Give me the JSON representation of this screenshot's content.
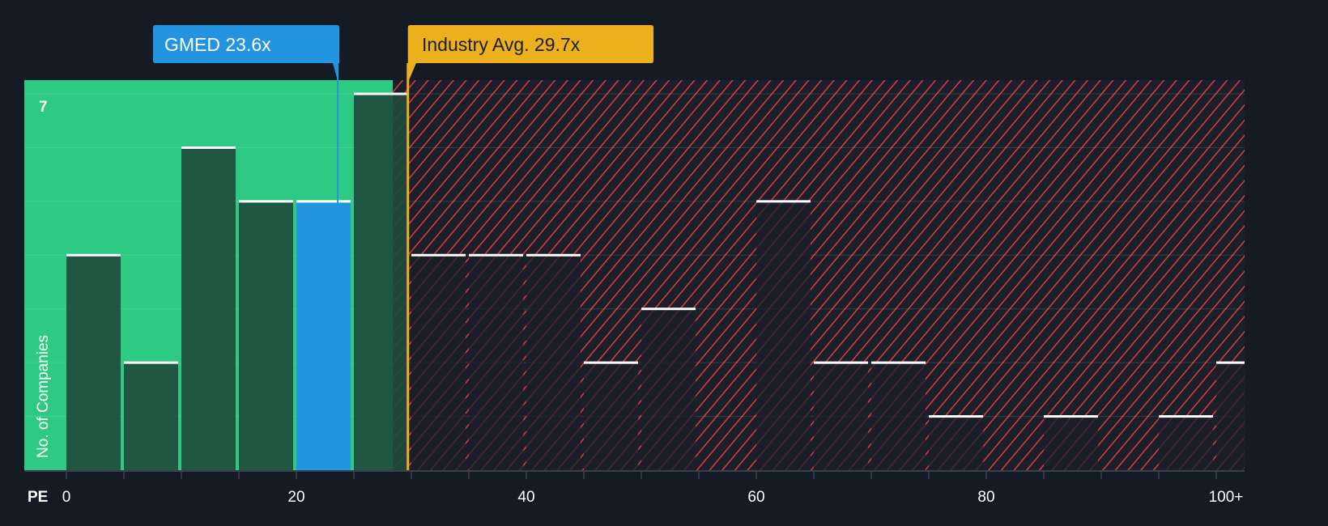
{
  "chart_data": {
    "type": "bar",
    "title": "",
    "xlabel": "PE",
    "ylabel": "No. of Companies",
    "bin_width": 5,
    "bins": [
      "0-5",
      "5-10",
      "10-15",
      "15-20",
      "20-25",
      "25-30",
      "30-35",
      "35-40",
      "40-45",
      "45-50",
      "50-55",
      "55-60",
      "60-65",
      "65-70",
      "70-75",
      "75-80",
      "80-85",
      "85-90",
      "90-95",
      "95-100",
      "100+"
    ],
    "values": [
      4,
      2,
      6,
      5,
      5,
      7,
      4,
      4,
      4,
      2,
      3,
      0,
      5,
      2,
      2,
      1,
      0,
      1,
      0,
      1,
      2
    ],
    "highlight_bin": 4,
    "x_ticks": [
      "0",
      "20",
      "40",
      "60",
      "80",
      "100+"
    ],
    "x_tick_values": [
      0,
      20,
      40,
      60,
      80,
      100
    ],
    "y_max_label": "7",
    "ylim": [
      0,
      7
    ],
    "xlim": [
      0,
      102
    ],
    "company": {
      "label": "GMED 23.6x",
      "value": 23.6
    },
    "industry": {
      "label": "Industry Avg. 29.7x",
      "value": 29.7
    },
    "colors": {
      "background": "#151b24",
      "undervalued": "#2ec982",
      "overvalued_hatch": "#e03a3e",
      "company": "#2394e0",
      "industry": "#ebb01b",
      "bar_dark": "#1f4a3c"
    }
  }
}
